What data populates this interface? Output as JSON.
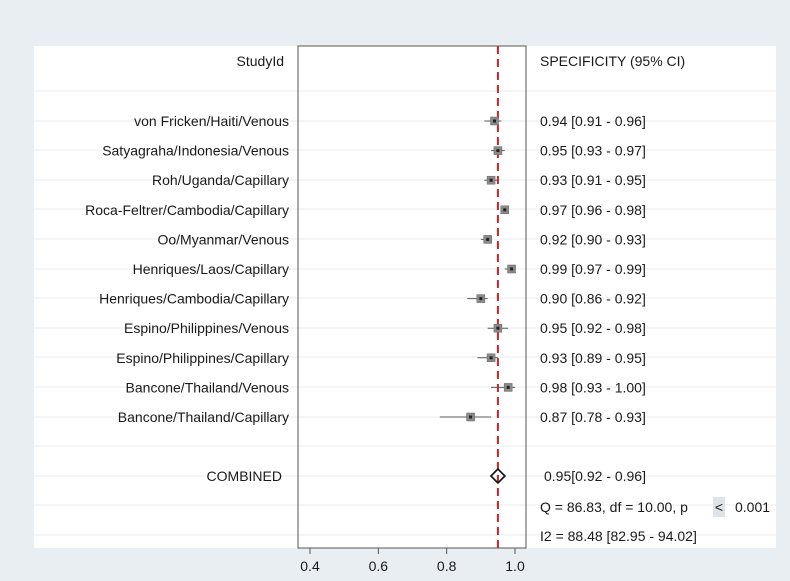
{
  "chart_data": {
    "type": "forest",
    "header_left": "StudyId",
    "header_right": "SPECIFICITY (95% CI)",
    "studies": [
      {
        "label": "von Fricken/Haiti/Venous",
        "estimate": 0.94,
        "lower": 0.91,
        "upper": 0.96,
        "ci_text": "0.94 [0.91 - 0.96]"
      },
      {
        "label": "Satyagraha/Indonesia/Venous",
        "estimate": 0.95,
        "lower": 0.93,
        "upper": 0.97,
        "ci_text": "0.95 [0.93 - 0.97]"
      },
      {
        "label": "Roh/Uganda/Capillary",
        "estimate": 0.93,
        "lower": 0.91,
        "upper": 0.95,
        "ci_text": "0.93 [0.91 - 0.95]"
      },
      {
        "label": "Roca-Feltrer/Cambodia/Capillary",
        "estimate": 0.97,
        "lower": 0.96,
        "upper": 0.98,
        "ci_text": "0.97 [0.96 - 0.98]"
      },
      {
        "label": "Oo/Myanmar/Venous",
        "estimate": 0.92,
        "lower": 0.9,
        "upper": 0.93,
        "ci_text": "0.92 [0.90 - 0.93]"
      },
      {
        "label": "Henriques/Laos/Capillary",
        "estimate": 0.99,
        "lower": 0.97,
        "upper": 0.99,
        "ci_text": "0.99 [0.97 - 0.99]"
      },
      {
        "label": "Henriques/Cambodia/Capillary",
        "estimate": 0.9,
        "lower": 0.86,
        "upper": 0.92,
        "ci_text": "0.90 [0.86 - 0.92]"
      },
      {
        "label": "Espino/Philippines/Venous",
        "estimate": 0.95,
        "lower": 0.92,
        "upper": 0.98,
        "ci_text": "0.95 [0.92 - 0.98]"
      },
      {
        "label": "Espino/Philippines/Capillary",
        "estimate": 0.93,
        "lower": 0.89,
        "upper": 0.95,
        "ci_text": "0.93 [0.89 - 0.95]"
      },
      {
        "label": "Bancone/Thailand/Venous",
        "estimate": 0.98,
        "lower": 0.93,
        "upper": 1.0,
        "ci_text": "0.98 [0.93 - 1.00]"
      },
      {
        "label": "Bancone/Thailand/Capillary",
        "estimate": 0.87,
        "lower": 0.78,
        "upper": 0.93,
        "ci_text": "0.87 [0.78 - 0.93]"
      }
    ],
    "combined": {
      "label": "COMBINED",
      "estimate": 0.95,
      "lower": 0.92,
      "upper": 0.96,
      "ci_text": "0.95[0.92 - 0.96]"
    },
    "heterogeneity": {
      "q_prefix": "Q = 86.83, df = 10.00, p",
      "q_symbol": "<",
      "q_value": "0.001",
      "i2_text": "I2 = 88.48 [82.95 - 94.02]"
    },
    "xlim": [
      0.35,
      1.02
    ],
    "xticks": [
      0.4,
      0.6,
      0.8,
      1.0
    ],
    "xtick_labels": [
      "0.4",
      "0.6",
      "0.8",
      "1.0"
    ],
    "reference_line": 0.95,
    "grid": true,
    "colors": {
      "background": "#e9eef2",
      "plot_bg": "#ffffff",
      "grid": "#e6ecf0",
      "reference_line": "#d0202a",
      "marker": "#8a8a8a",
      "ci_line": "#5a5a5a",
      "diamond": "#111111"
    }
  }
}
